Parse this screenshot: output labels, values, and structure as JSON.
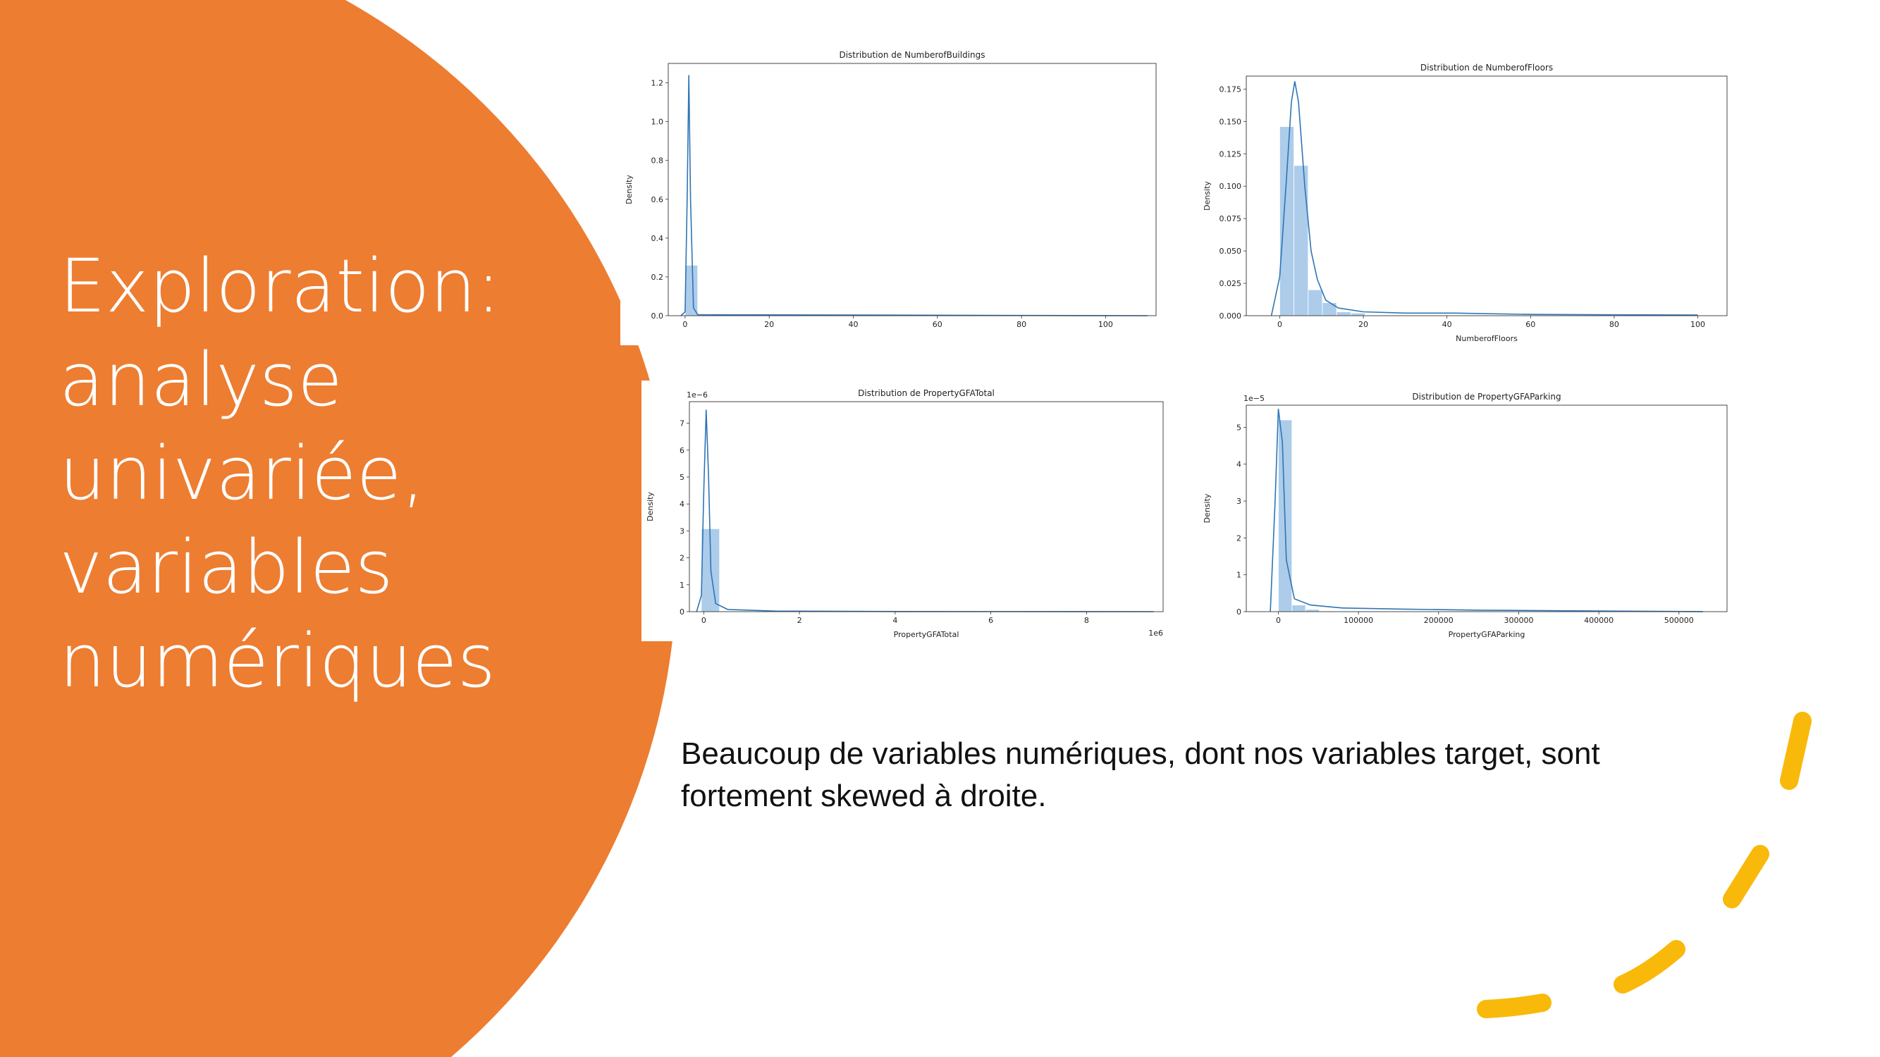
{
  "slide": {
    "title_lines": [
      "Exploration:",
      "analyse",
      "univariée,",
      "variables",
      "numériques"
    ],
    "body_text": "Beaucoup de variables numériques, dont nos variables target, sont fortement skewed à droite.",
    "colors": {
      "circle": "#ED7D31",
      "dashes": "#F9B90B",
      "title": "#FFFFFF",
      "bar": "#9DC3E6",
      "kde": "#2E75B6"
    }
  },
  "chart_data": [
    {
      "type": "bar",
      "title": "Distribution de NumberofBuildings",
      "xlabel": "",
      "ylabel": "Density",
      "xlim": [
        -4,
        112
      ],
      "ylim": [
        0,
        1.3
      ],
      "xticks": [
        "0",
        "20",
        "40",
        "60",
        "80",
        "100"
      ],
      "xtick_values": [
        0,
        20,
        40,
        60,
        80,
        100
      ],
      "yticks": [
        "0.0",
        "0.2",
        "0.4",
        "0.6",
        "0.8",
        "1.0",
        "1.2"
      ],
      "ytick_values": [
        0,
        0.2,
        0.4,
        0.6,
        0.8,
        1.0,
        1.2
      ],
      "bins": [
        {
          "x0": 0,
          "x1": 3,
          "value": 0.26
        }
      ],
      "kde": [
        [
          -1,
          0
        ],
        [
          0,
          0.02
        ],
        [
          0.5,
          0.6
        ],
        [
          0.9,
          1.24
        ],
        [
          1.3,
          0.6
        ],
        [
          2,
          0.04
        ],
        [
          3,
          0.005
        ],
        [
          110,
          0
        ]
      ]
    },
    {
      "type": "bar",
      "title": "Distribution de NumberofFloors",
      "xlabel": "NumberofFloors",
      "ylabel": "Density",
      "xlim": [
        -8,
        107
      ],
      "ylim": [
        0,
        0.185
      ],
      "xticks": [
        "0",
        "20",
        "40",
        "60",
        "80",
        "100"
      ],
      "xtick_values": [
        0,
        20,
        40,
        60,
        80,
        100
      ],
      "yticks": [
        "0.000",
        "0.025",
        "0.050",
        "0.075",
        "0.100",
        "0.125",
        "0.150",
        "0.175"
      ],
      "ytick_values": [
        0,
        0.025,
        0.05,
        0.075,
        0.1,
        0.125,
        0.15,
        0.175
      ],
      "bins": [
        {
          "x0": 0,
          "x1": 3.4,
          "value": 0.146
        },
        {
          "x0": 3.4,
          "x1": 6.8,
          "value": 0.116
        },
        {
          "x0": 6.8,
          "x1": 10.2,
          "value": 0.02
        },
        {
          "x0": 10.2,
          "x1": 13.6,
          "value": 0.01
        },
        {
          "x0": 13.6,
          "x1": 17,
          "value": 0.003
        },
        {
          "x0": 17,
          "x1": 20.4,
          "value": 0.002
        }
      ],
      "kde": [
        [
          -2,
          0
        ],
        [
          0,
          0.03
        ],
        [
          1.5,
          0.1
        ],
        [
          2.8,
          0.165
        ],
        [
          3.6,
          0.181
        ],
        [
          4.5,
          0.165
        ],
        [
          6,
          0.1
        ],
        [
          7.5,
          0.05
        ],
        [
          9,
          0.028
        ],
        [
          11,
          0.012
        ],
        [
          14,
          0.006
        ],
        [
          20,
          0.003
        ],
        [
          30,
          0.002
        ],
        [
          42,
          0.002
        ],
        [
          60,
          0.001
        ],
        [
          100,
          0.0005
        ]
      ]
    },
    {
      "type": "bar",
      "title": "Distribution de PropertyGFATotal",
      "xlabel": "PropertyGFATotal",
      "ylabel": "Density",
      "xlim": [
        -0.3,
        9.6
      ],
      "ylim": [
        0,
        7.8
      ],
      "x_multiplier": "1e6",
      "y_multiplier": "1e−6",
      "xticks": [
        "0",
        "2",
        "4",
        "6",
        "8"
      ],
      "xtick_values": [
        0,
        2,
        4,
        6,
        8
      ],
      "yticks": [
        "0",
        "1",
        "2",
        "3",
        "4",
        "5",
        "6",
        "7"
      ],
      "ytick_values": [
        0,
        1,
        2,
        3,
        4,
        5,
        6,
        7
      ],
      "bins": [
        {
          "x0": -0.05,
          "x1": 0.33,
          "value": 3.08
        },
        {
          "x0": 0.33,
          "x1": 0.71,
          "value": 0.02
        }
      ],
      "kde": [
        [
          -0.15,
          0
        ],
        [
          -0.05,
          0.6
        ],
        [
          0.0,
          4.5
        ],
        [
          0.05,
          7.5
        ],
        [
          0.1,
          5.0
        ],
        [
          0.15,
          1.5
        ],
        [
          0.25,
          0.3
        ],
        [
          0.5,
          0.08
        ],
        [
          1.5,
          0.02
        ],
        [
          4,
          0.005
        ],
        [
          9.4,
          0
        ]
      ]
    },
    {
      "type": "bar",
      "title": "Distribution de PropertyGFAParking",
      "xlabel": "PropertyGFAParking",
      "ylabel": "Density",
      "xlim": [
        -40000,
        560000
      ],
      "ylim": [
        0,
        5.6
      ],
      "y_multiplier": "1e−5",
      "xticks": [
        "0",
        "100000",
        "200000",
        "300000",
        "400000",
        "500000"
      ],
      "xtick_values": [
        0,
        100000,
        200000,
        300000,
        400000,
        500000
      ],
      "yticks": [
        "0",
        "1",
        "2",
        "3",
        "4",
        "5"
      ],
      "ytick_values": [
        0,
        1,
        2,
        3,
        4,
        5
      ],
      "bins": [
        {
          "x0": 0,
          "x1": 17000,
          "value": 5.2
        },
        {
          "x0": 17000,
          "x1": 34000,
          "value": 0.18
        },
        {
          "x0": 34000,
          "x1": 51000,
          "value": 0.06
        }
      ],
      "kde": [
        [
          -10000,
          0
        ],
        [
          -4000,
          3.0
        ],
        [
          0,
          5.5
        ],
        [
          5000,
          4.6
        ],
        [
          10000,
          1.4
        ],
        [
          20000,
          0.35
        ],
        [
          40000,
          0.18
        ],
        [
          80000,
          0.1
        ],
        [
          150000,
          0.07
        ],
        [
          250000,
          0.04
        ],
        [
          400000,
          0.02
        ],
        [
          530000,
          0
        ]
      ]
    }
  ]
}
